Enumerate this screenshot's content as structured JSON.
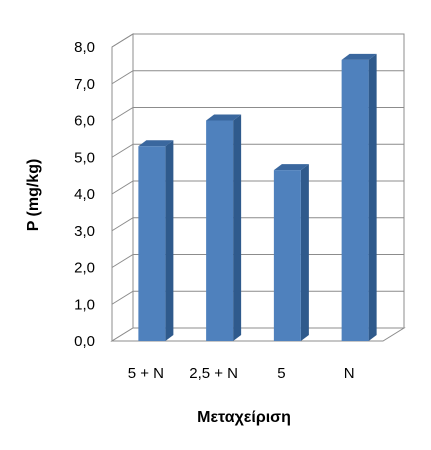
{
  "chart_data": {
    "type": "bar",
    "title": "",
    "xlabel": "Μεταχείριση",
    "ylabel": "P (mg/kg)",
    "categories": [
      "5 + N",
      "2,5 + N",
      "5",
      "N"
    ],
    "values": [
      5.3,
      6.0,
      4.65,
      7.65
    ],
    "ylim": [
      0,
      8
    ],
    "yticks": [
      "0,0",
      "1,0",
      "2,0",
      "3,0",
      "4,0",
      "5,0",
      "6,0",
      "7,0",
      "8,0"
    ],
    "grid": true,
    "style": "3d-column",
    "bar_color": "#4F81BD",
    "legend": "none"
  }
}
